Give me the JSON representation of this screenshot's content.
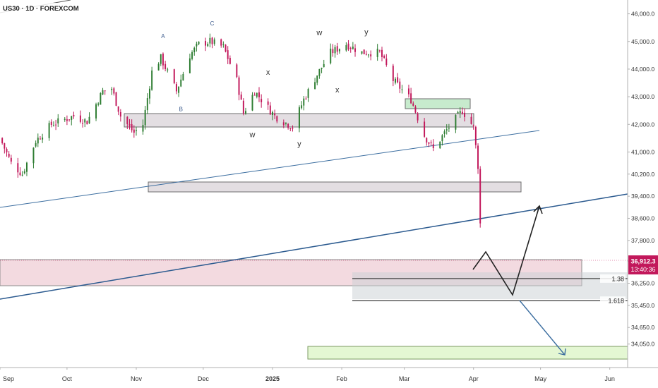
{
  "header": {
    "symbol_label": "US30 · 1D · FOREXCOM"
  },
  "price_badge": {
    "price": "36,912.3",
    "countdown": "13:40:36",
    "color": "#c2185b"
  },
  "fib_levels": [
    {
      "label": "1.38",
      "price": 36420
    },
    {
      "label": "1.618",
      "price": 35620
    }
  ],
  "wave_labels": [
    {
      "text": "A",
      "date": "2024-11-13",
      "price": 45120,
      "color": "#3a5a8c"
    },
    {
      "text": "B",
      "date": "2024-11-21",
      "price": 42480,
      "color": "#3a5a8c"
    },
    {
      "text": "C",
      "date": "2024-12-05",
      "price": 45580,
      "color": "#3a5a8c"
    },
    {
      "text": "w",
      "date": "2024-12-23",
      "price": 41540,
      "color": "#333333"
    },
    {
      "text": "x",
      "date": "2024-12-30",
      "price": 43800,
      "color": "#333333"
    },
    {
      "text": "y",
      "date": "2025-01-13",
      "price": 41200,
      "color": "#333333"
    },
    {
      "text": "w",
      "date": "2025-01-22",
      "price": 45220,
      "color": "#333333"
    },
    {
      "text": "x",
      "date": "2025-01-30",
      "price": 43150,
      "color": "#333333"
    },
    {
      "text": "y",
      "date": "2025-02-12",
      "price": 45250,
      "color": "#333333"
    }
  ],
  "chart_data": {
    "type": "candlestick",
    "x_axis": {
      "range": [
        "2024-09-01",
        "2025-06-09"
      ],
      "ticks": [
        {
          "label": "Sep",
          "date": "2024-09-01"
        },
        {
          "label": "Oct",
          "date": "2024-10-01"
        },
        {
          "label": "Nov",
          "date": "2024-11-01"
        },
        {
          "label": "Dec",
          "date": "2024-12-01"
        },
        {
          "label": "2025",
          "date": "2025-01-01",
          "bold": true
        },
        {
          "label": "Feb",
          "date": "2025-02-01"
        },
        {
          "label": "Mar",
          "date": "2025-03-01"
        },
        {
          "label": "Apr",
          "date": "2025-04-01"
        },
        {
          "label": "May",
          "date": "2025-05-01"
        },
        {
          "label": "Jun",
          "date": "2025-06-01"
        }
      ]
    },
    "y_axis": {
      "range": [
        33200,
        46500
      ],
      "ticks": [
        {
          "label": "46,000.0",
          "value": 46000
        },
        {
          "label": "45,000.0",
          "value": 45000
        },
        {
          "label": "44,000.0",
          "value": 44000
        },
        {
          "label": "43,000.0",
          "value": 43000
        },
        {
          "label": "42,000.0",
          "value": 42000
        },
        {
          "label": "41,000.0",
          "value": 41000
        },
        {
          "label": "40,200.0",
          "value": 40200
        },
        {
          "label": "39,400.0",
          "value": 39400
        },
        {
          "label": "38,600.0",
          "value": 38600
        },
        {
          "label": "37,800.0",
          "value": 37800
        },
        {
          "label": "37,050.0",
          "value": 37050
        },
        {
          "label": "36,250.0",
          "value": 36250
        },
        {
          "label": "35,450.0",
          "value": 35450
        },
        {
          "label": "34,650.0",
          "value": 34650
        },
        {
          "label": "34,050.0",
          "value": 34050
        }
      ]
    },
    "colors": {
      "up": "#2e7d32",
      "down": "#c2185b",
      "trend": "#2b5a8f"
    },
    "path_points": [
      {
        "date": "2024-09-01",
        "price": 41500
      },
      {
        "date": "2024-09-06",
        "price": 40600
      },
      {
        "date": "2024-09-11",
        "price": 40200
      },
      {
        "date": "2024-09-17",
        "price": 41400
      },
      {
        "date": "2024-09-24",
        "price": 42000
      },
      {
        "date": "2024-10-04",
        "price": 42300
      },
      {
        "date": "2024-10-10",
        "price": 42100
      },
      {
        "date": "2024-10-17",
        "price": 43200
      },
      {
        "date": "2024-10-21",
        "price": 43300
      },
      {
        "date": "2024-10-25",
        "price": 42300
      },
      {
        "date": "2024-10-31",
        "price": 41700
      },
      {
        "date": "2024-11-04",
        "price": 42000
      },
      {
        "date": "2024-11-08",
        "price": 43900
      },
      {
        "date": "2024-11-12",
        "price": 44400
      },
      {
        "date": "2024-11-19",
        "price": 43200
      },
      {
        "date": "2024-11-25",
        "price": 44500
      },
      {
        "date": "2024-11-29",
        "price": 44900
      },
      {
        "date": "2024-12-04",
        "price": 45000
      },
      {
        "date": "2024-12-10",
        "price": 44800
      },
      {
        "date": "2024-12-16",
        "price": 43600
      },
      {
        "date": "2024-12-19",
        "price": 42400
      },
      {
        "date": "2024-12-24",
        "price": 43200
      },
      {
        "date": "2025-01-02",
        "price": 42300
      },
      {
        "date": "2025-01-10",
        "price": 41900
      },
      {
        "date": "2025-01-15",
        "price": 42900
      },
      {
        "date": "2025-01-21",
        "price": 43800
      },
      {
        "date": "2025-01-27",
        "price": 44600
      },
      {
        "date": "2025-02-03",
        "price": 44900
      },
      {
        "date": "2025-02-10",
        "price": 44600
      },
      {
        "date": "2025-02-18",
        "price": 44600
      },
      {
        "date": "2025-02-24",
        "price": 43600
      },
      {
        "date": "2025-03-04",
        "price": 42900
      },
      {
        "date": "2025-03-10",
        "price": 41600
      },
      {
        "date": "2025-03-14",
        "price": 41100
      },
      {
        "date": "2025-03-20",
        "price": 41800
      },
      {
        "date": "2025-03-27",
        "price": 42500
      },
      {
        "date": "2025-04-01",
        "price": 41900
      },
      {
        "date": "2025-04-03",
        "price": 40500
      },
      {
        "date": "2025-04-04",
        "price": 38400
      },
      {
        "date": "2025-04-07",
        "price": 36912
      }
    ]
  }
}
